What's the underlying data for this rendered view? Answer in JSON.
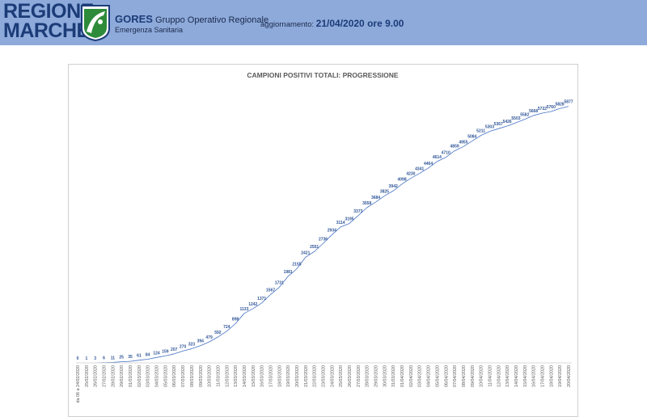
{
  "header": {
    "logo_line1": "REGIONE",
    "logo_line2": "MARCHE",
    "org_short": "GORES",
    "org_line1": "Gruppo Operativo Regionale",
    "org_line2": "Emergenza Sanitaria",
    "update_label": "aggiornamento:",
    "update_value": "21/04/2020 ore 9.00",
    "colors": {
      "band": "#8eaadb",
      "brand": "#1c3c78",
      "emblem_green": "#2e8b3a"
    }
  },
  "chart_data": {
    "type": "line",
    "title": "CAMPIONI POSITIVI TOTALI: PROGRESSIONE",
    "xlabel": "",
    "ylabel": "",
    "ylim": [
      0,
      6000
    ],
    "grid": false,
    "series_color": "#4472c4",
    "label_color": "#2f5597",
    "categories": [
      "da 06 a 24/02/2020",
      "25/02/2020",
      "26/02/2020",
      "27/02/2020",
      "28/02/2020",
      "29/02/2020",
      "01/03/2020",
      "02/03/2020",
      "03/03/2020",
      "04/03/2020",
      "05/03/2020",
      "06/03/2020",
      "07/03/2020",
      "08/03/2020",
      "09/03/2020",
      "10/03/2020",
      "11/03/2020",
      "12/03/2020",
      "13/03/2020",
      "14/03/2020",
      "15/03/2020",
      "16/03/2020",
      "17/03/2020",
      "18/03/2020",
      "19/03/2020",
      "20/03/2020",
      "21/03/2020",
      "22/03/2020",
      "23/03/2020",
      "24/03/2020",
      "25/03/2020",
      "26/03/2020",
      "27/03/2020",
      "28/03/2020",
      "29/03/2020",
      "30/03/2020",
      "31/03/2020",
      "01/04/2020",
      "02/04/2020",
      "03/04/2020",
      "04/04/2020",
      "05/04/2020",
      "06/04/2020",
      "07/04/2020",
      "08/04/2020",
      "09/04/2020",
      "10/04/2020",
      "11/04/2020",
      "12/04/2020",
      "13/04/2020",
      "14/04/2020",
      "15/04/2020",
      "16/04/2020",
      "17/04/2020",
      "18/04/2020",
      "19/04/2020",
      "20/04/2020"
    ],
    "values": [
      0,
      1,
      3,
      6,
      11,
      25,
      35,
      61,
      84,
      124,
      159,
      207,
      270,
      323,
      394,
      479,
      592,
      724,
      898,
      1133,
      1242,
      1371,
      1567,
      1731,
      1981,
      2155,
      2421,
      2551,
      2736,
      2934,
      3114,
      3195,
      3373,
      3558,
      3684,
      3825,
      3942,
      4098,
      4230,
      4341,
      4464,
      4614,
      4710,
      4859,
      4955,
      5084,
      5211,
      5303,
      5367,
      5426,
      5503,
      5582,
      5668,
      5722,
      5760,
      5828,
      5877
    ]
  }
}
